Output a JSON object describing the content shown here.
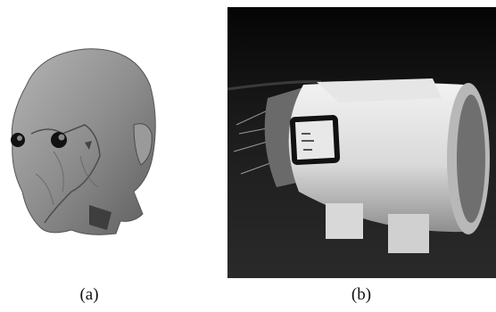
{
  "subfigures": [
    {
      "caption": "(a)"
    },
    {
      "caption": "(b)"
    }
  ]
}
